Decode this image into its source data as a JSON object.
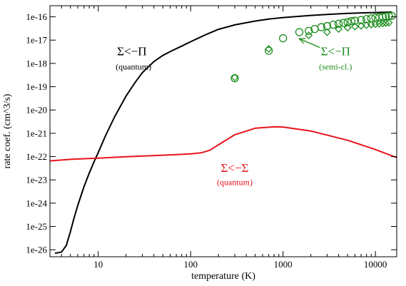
{
  "chart_data": {
    "type": "line",
    "xlabel": "temperature (K)",
    "ylabel": "rate coef. (cm^3/s)",
    "x_scale": "log",
    "y_scale": "log",
    "xlim": [
      3,
      17000
    ],
    "ylim": [
      5e-27,
      3e-16
    ],
    "x_ticks": [
      {
        "value": 10,
        "label": "10"
      },
      {
        "value": 100,
        "label": "100"
      },
      {
        "value": 1000,
        "label": "1000"
      },
      {
        "value": 10000,
        "label": "10000"
      }
    ],
    "y_ticks": [
      {
        "value": 1e-26,
        "label": "1e-26"
      },
      {
        "value": 1e-25,
        "label": "1e-25"
      },
      {
        "value": 1e-24,
        "label": "1e-24"
      },
      {
        "value": 1e-23,
        "label": "1e-23"
      },
      {
        "value": 1e-22,
        "label": "1e-22"
      },
      {
        "value": 1e-21,
        "label": "1e-21"
      },
      {
        "value": 1e-20,
        "label": "1e-20"
      },
      {
        "value": 1e-19,
        "label": "1e-19"
      },
      {
        "value": 1e-18,
        "label": "1e-18"
      },
      {
        "value": 1e-17,
        "label": "1e-17"
      },
      {
        "value": 1e-16,
        "label": "1e-16"
      }
    ],
    "grid": false,
    "series": [
      {
        "color": "#000000",
        "style": "line",
        "x": [
          3.4,
          4.0,
          4.5,
          5.0,
          5.5,
          6.0,
          7.0,
          8.0,
          9.0,
          10,
          12,
          15,
          20,
          25,
          30,
          40,
          50,
          60,
          70,
          80,
          90,
          100,
          120,
          150,
          200,
          300,
          500,
          700,
          1000,
          2000,
          3000,
          5000,
          7000,
          10000,
          15000
        ],
        "y": [
          7e-27,
          8e-27,
          1.5e-26,
          6e-26,
          2.5e-25,
          8e-25,
          5e-24,
          2e-23,
          6e-23,
          1.5e-22,
          8e-22,
          5e-21,
          4e-20,
          1.5e-19,
          4e-19,
          1.2e-18,
          2.2e-18,
          3.2e-18,
          4.3e-18,
          5.5e-18,
          7e-18,
          8.5e-18,
          1.2e-17,
          1.8e-17,
          2.9e-17,
          4.5e-17,
          6.6e-17,
          8e-17,
          9.3e-17,
          1.15e-16,
          1.27e-16,
          1.4e-16,
          1.47e-16,
          1.53e-16,
          1.6e-16
        ]
      },
      {
        "color": "#e8131b",
        "style": "line",
        "x": [
          3,
          5,
          10,
          20,
          50,
          100,
          130,
          160,
          200,
          300,
          500,
          800,
          1000,
          2000,
          5000,
          10000,
          17000
        ],
        "y": [
          6.5e-23,
          7.6e-23,
          8.6e-23,
          9.8e-23,
          1.15e-22,
          1.3e-22,
          1.45e-22,
          1.85e-22,
          3.2e-22,
          8.7e-22,
          1.65e-21,
          1.9e-21,
          1.85e-21,
          1.25e-21,
          5e-22,
          2e-22,
          9e-23
        ]
      },
      {
        "color": "#1a8c1a",
        "style": "circle",
        "x": [
          300,
          700,
          1000,
          1500,
          1900,
          2200,
          2600,
          3000,
          3500,
          4000,
          4500,
          5000,
          5500,
          6000,
          7000,
          8000,
          9000,
          10000,
          11000,
          12000,
          13000,
          14000,
          15000
        ],
        "y": [
          2.3e-19,
          3.5e-18,
          1.2e-17,
          2.2e-17,
          2.5e-17,
          3e-17,
          3.6e-17,
          4e-17,
          4.6e-17,
          5e-17,
          5.5e-17,
          5.9e-17,
          6.5e-17,
          6.8e-17,
          7.3e-17,
          8e-17,
          8.6e-17,
          9.2e-17,
          9.6e-17,
          1e-16,
          1.05e-16,
          1.08e-16,
          1.1e-16
        ]
      },
      {
        "color": "#1a8c1a",
        "style": "diamond",
        "x": [
          300,
          700,
          1900,
          3000,
          4000,
          5000,
          6000,
          7000,
          8000,
          9000,
          10000,
          11000,
          12000,
          13000,
          14000
        ],
        "y": [
          2.5e-19,
          4.2e-18,
          1.6e-17,
          2.2e-17,
          3e-17,
          3.4e-17,
          3.8e-17,
          4.1e-17,
          4.4e-17,
          4.6e-17,
          4.8e-17,
          5e-17,
          5.2e-17,
          5.4e-17,
          5.6e-17
        ]
      }
    ],
    "annotations": [
      {
        "main": "Σ<−Π",
        "sub": "(quantum)",
        "color": "#000000",
        "x": 16,
        "y": 2.2e-18,
        "sub_y": 5.5e-19,
        "anchor": "start"
      },
      {
        "main": "Σ<−Σ",
        "sub": "(quantum)",
        "color": "#e8131b",
        "x": 300,
        "y": 2.2e-23,
        "sub_y": 6e-24,
        "anchor": "middle"
      },
      {
        "main": "Σ<−Π",
        "sub": "(semi-cl.)",
        "color": "#1a8c1a",
        "x": 3700,
        "y": 2.2e-18,
        "sub_y": 5.5e-19,
        "anchor": "middle"
      }
    ],
    "arrow": {
      "color": "#1a8c1a",
      "from": [
        2500,
        4.8e-18
      ],
      "to": [
        1500,
        1.15e-17
      ]
    }
  }
}
